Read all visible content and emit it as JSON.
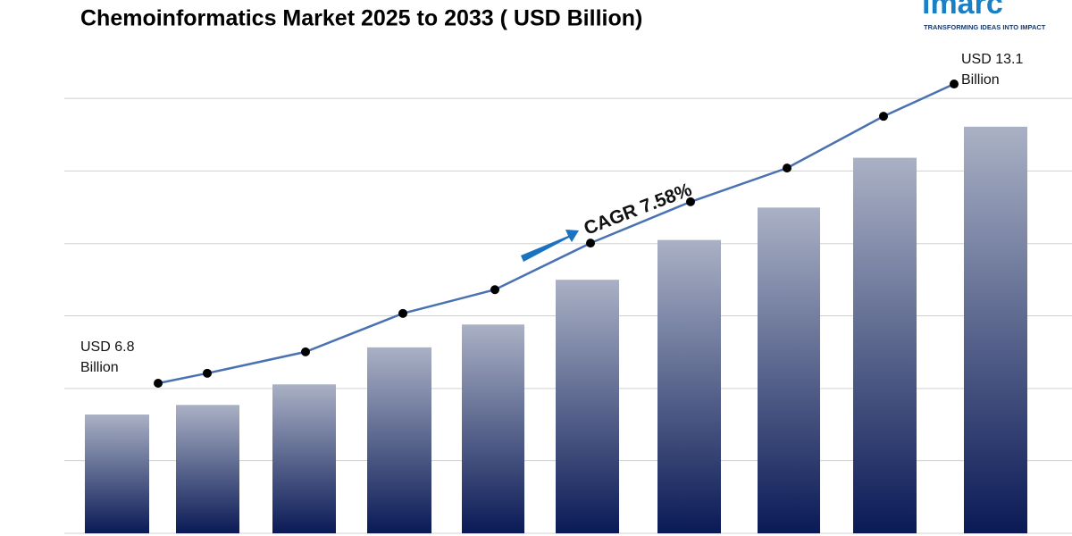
{
  "logo": {
    "name": "imarc",
    "tagline": "TRANSFORMING IDEAS INTO IMPACT"
  },
  "chart_data": {
    "type": "bar",
    "title": "Chemoinformatics Market 2025 to 2033 ( USD Billion)",
    "annotation": "CAGR 7.58%",
    "categories": [
      null,
      null,
      null,
      null,
      null,
      null,
      null,
      null,
      null,
      null
    ],
    "values": [
      6.8,
      7.01,
      7.46,
      8.27,
      8.77,
      9.75,
      10.62,
      11.33,
      12.42,
      13.1
    ],
    "value_labels": [
      "USD 6.8 Billion",
      null,
      null,
      null,
      null,
      null,
      null,
      null,
      null,
      "USD 13.1 Billion"
    ],
    "bar_color_top": "#aab1c5",
    "bar_color_bottom": "#0a1a56",
    "line_overlay": true,
    "line_color": "#4a72b2",
    "marker_color": "#000000",
    "ylim": [
      4.2,
      14.7
    ],
    "yticks": [
      4.2,
      5.79,
      7.37,
      8.96,
      10.54,
      12.13,
      13.72
    ],
    "y2lim": [
      3.64,
      13.74
    ],
    "grid": true,
    "show_tick_labels": false
  }
}
